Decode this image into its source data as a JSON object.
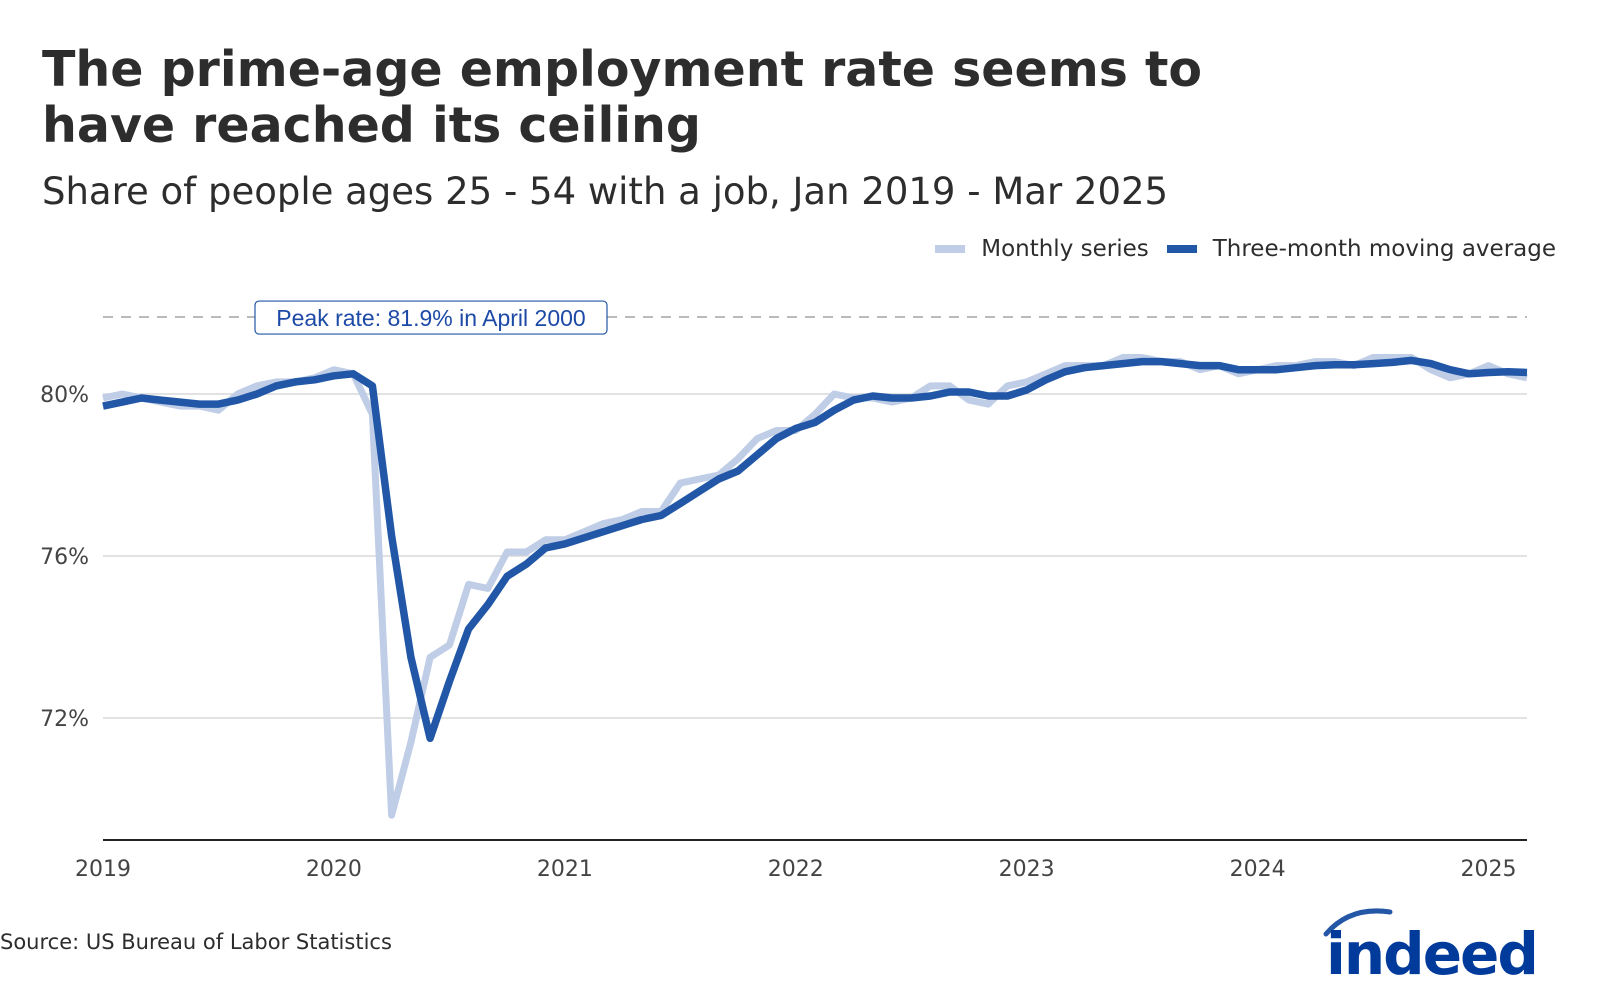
{
  "title": "The prime-age employment rate seems to have reached its ceiling",
  "subtitle": "Share of people ages 25 - 54 with a job, Jan 2019 - Mar 2025",
  "source": "Source: US Bureau of Labor Statistics",
  "logo_text": "indeed",
  "legend": [
    {
      "label": "Monthly series",
      "color": "#bfcde6"
    },
    {
      "label": "Three-month moving average",
      "color": "#2157a6"
    }
  ],
  "chart_data": {
    "type": "line",
    "title": "The prime-age employment rate seems to have reached its ceiling",
    "subtitle": "Share of people ages 25 - 54 with a job, Jan 2019 - Mar 2025",
    "x_start": "2019-01",
    "x_end": "2025-03",
    "x_ticks": [
      "2019",
      "2020",
      "2021",
      "2022",
      "2023",
      "2024",
      "2025"
    ],
    "y_ticks": [
      72,
      76,
      80
    ],
    "y_tick_labels": [
      "72%",
      "76%",
      "80%"
    ],
    "ylim": [
      69,
      82.2
    ],
    "grid": true,
    "legend_position": "top-right",
    "reference_line": {
      "value": 81.9,
      "label": "Peak rate: 81.9% in April 2000",
      "style": "dashed"
    },
    "series": [
      {
        "name": "Monthly series",
        "color": "#bfcde6",
        "values": [
          79.9,
          80.0,
          79.9,
          79.8,
          79.7,
          79.7,
          79.6,
          80.0,
          80.2,
          80.3,
          80.3,
          80.4,
          80.6,
          80.5,
          79.5,
          69.6,
          71.4,
          73.5,
          73.8,
          75.3,
          75.2,
          76.1,
          76.1,
          76.4,
          76.4,
          76.6,
          76.8,
          76.9,
          77.1,
          77.1,
          77.8,
          77.9,
          78.0,
          78.4,
          78.9,
          79.1,
          79.1,
          79.5,
          80.0,
          79.9,
          79.9,
          79.8,
          79.9,
          80.2,
          80.2,
          79.85,
          79.75,
          80.2,
          80.3,
          80.5,
          80.7,
          80.7,
          80.7,
          80.9,
          80.9,
          80.8,
          80.8,
          80.6,
          80.7,
          80.5,
          80.6,
          80.7,
          80.7,
          80.8,
          80.8,
          80.7,
          80.9,
          80.9,
          80.9,
          80.6,
          80.4,
          80.5,
          80.7,
          80.5,
          80.4
        ]
      },
      {
        "name": "Three-month moving average",
        "color": "#2157a6",
        "values": [
          79.7,
          79.8,
          79.9,
          79.85,
          79.8,
          79.75,
          79.75,
          79.85,
          80.0,
          80.2,
          80.3,
          80.35,
          80.45,
          80.5,
          80.2,
          76.5,
          73.5,
          71.5,
          72.9,
          74.2,
          74.8,
          75.5,
          75.8,
          76.2,
          76.3,
          76.45,
          76.6,
          76.75,
          76.9,
          77.0,
          77.3,
          77.6,
          77.9,
          78.1,
          78.5,
          78.9,
          79.15,
          79.3,
          79.6,
          79.85,
          79.95,
          79.9,
          79.9,
          79.95,
          80.05,
          80.05,
          79.95,
          79.95,
          80.1,
          80.35,
          80.55,
          80.65,
          80.7,
          80.75,
          80.8,
          80.8,
          80.75,
          80.7,
          80.7,
          80.6,
          80.6,
          80.6,
          80.65,
          80.7,
          80.72,
          80.72,
          80.75,
          80.78,
          80.83,
          80.75,
          80.6,
          80.5,
          80.53,
          80.55,
          80.53
        ]
      }
    ]
  }
}
